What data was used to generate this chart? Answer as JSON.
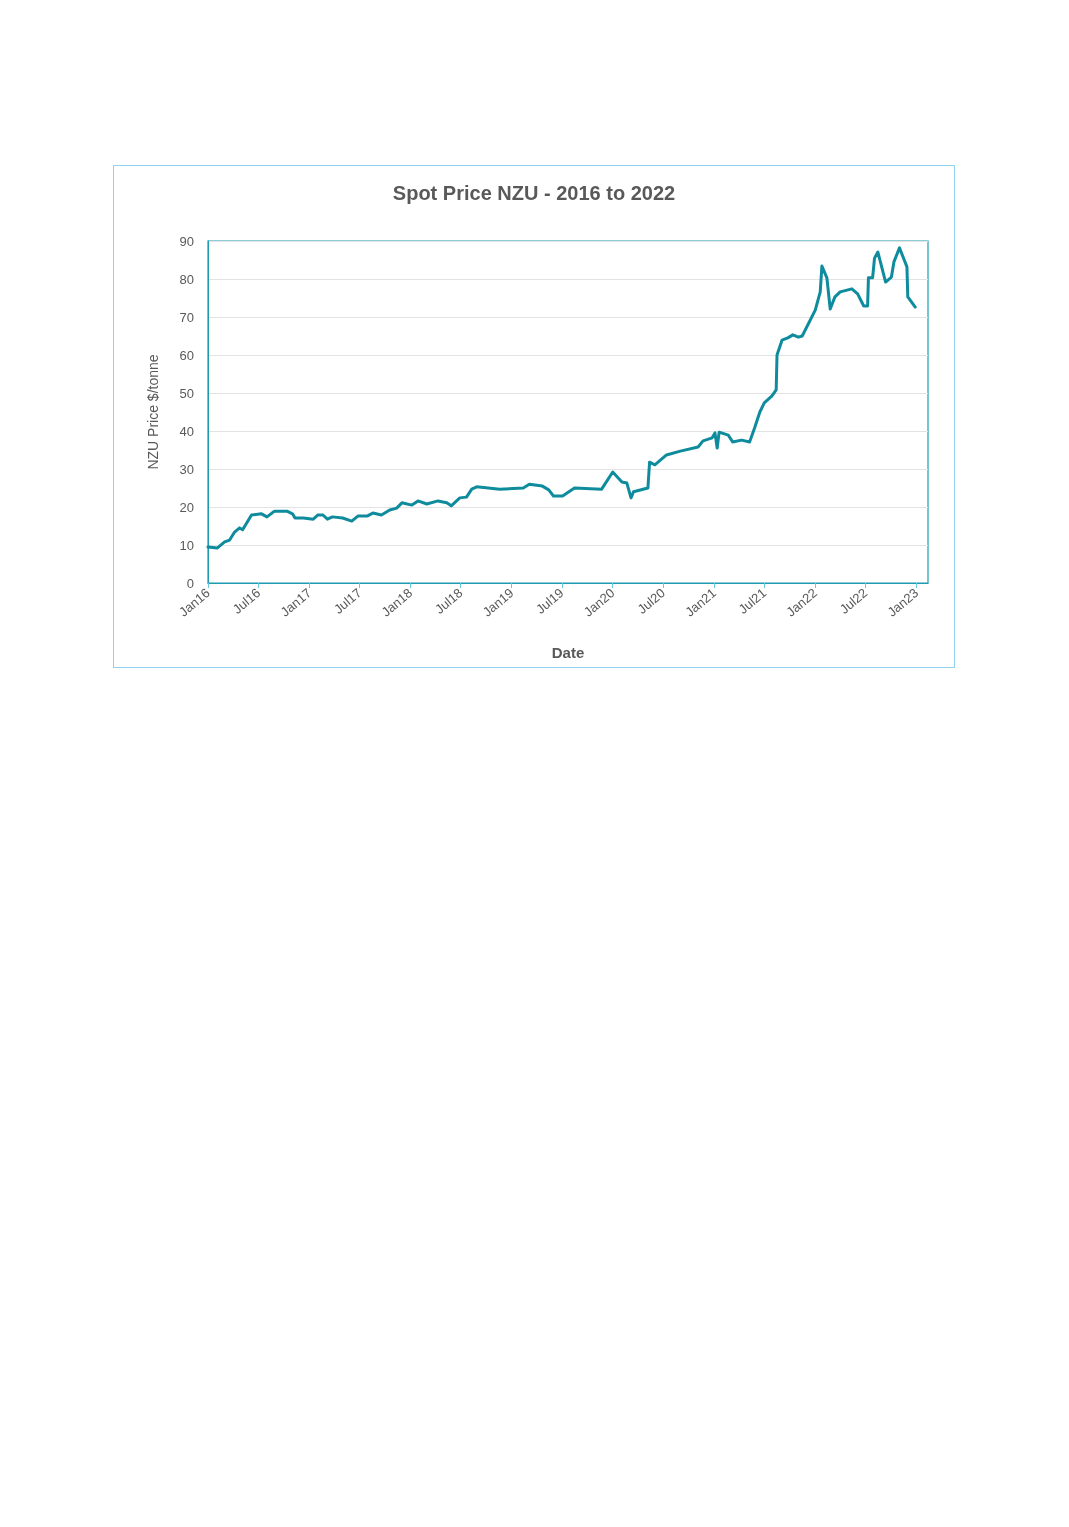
{
  "chart_data": {
    "type": "line",
    "title": "Spot Price NZU - 2016 to 2022",
    "xlabel": "Date",
    "ylabel": "NZU Price $/tonne",
    "x": [
      "2016-01-01",
      "2016-02-03",
      "2016-03-01",
      "2016-03-19",
      "2016-04-06",
      "2016-04-24",
      "2016-05-05",
      "2016-06-06",
      "2016-07-12",
      "2016-08-01",
      "2016-08-28",
      "2016-10-12",
      "2016-11-01",
      "2016-11-10",
      "2016-12-10",
      "2017-01-15",
      "2017-02-01",
      "2017-02-19",
      "2017-03-07",
      "2017-03-25",
      "2017-05-01",
      "2017-06-03",
      "2017-06-25",
      "2017-07-28",
      "2017-08-18",
      "2017-09-18",
      "2017-10-18",
      "2017-11-12",
      "2017-12-01",
      "2018-01-06",
      "2018-01-28",
      "2018-03-01",
      "2018-04-10",
      "2018-05-12",
      "2018-05-28",
      "2018-06-28",
      "2018-07-22",
      "2018-08-10",
      "2018-08-28",
      "2018-11-19",
      "2019-02-12",
      "2019-03-06",
      "2019-04-22",
      "2019-05-15",
      "2019-06-01",
      "2019-07-04",
      "2019-08-16",
      "2019-11-22",
      "2020-01-01",
      "2020-02-03",
      "2020-02-21",
      "2020-03-07",
      "2020-03-16",
      "2020-05-07",
      "2020-05-13",
      "2020-06-01",
      "2020-07-13",
      "2020-09-01",
      "2020-11-04",
      "2020-11-22",
      "2020-12-25",
      "2021-01-04",
      "2021-01-12",
      "2021-01-19",
      "2021-02-21",
      "2021-03-09",
      "2021-04-10",
      "2021-05-09",
      "2021-05-27",
      "2021-06-15",
      "2021-07-01",
      "2021-07-28",
      "2021-08-13",
      "2021-08-16",
      "2021-09-03",
      "2021-09-24",
      "2021-10-12",
      "2021-11-01",
      "2021-11-15",
      "2022-01-01",
      "2022-01-19",
      "2022-01-25",
      "2022-02-12",
      "2022-02-24",
      "2022-03-13",
      "2022-04-01",
      "2022-05-13",
      "2022-06-03",
      "2022-06-25",
      "2022-07-09",
      "2022-07-12",
      "2022-07-27",
      "2022-08-03",
      "2022-08-15",
      "2022-09-12",
      "2022-10-03",
      "2022-10-12",
      "2022-11-01",
      "2022-11-28",
      "2022-12-01",
      "2022-12-28"
    ],
    "series": [
      {
        "color": "#0e8c9e",
        "values": [
          9.5,
          9.2,
          10.8,
          11.3,
          13.4,
          14.5,
          14,
          17.9,
          18.2,
          17.4,
          18.9,
          18.9,
          18.2,
          17.1,
          17.1,
          16.8,
          17.9,
          17.9,
          16.8,
          17.4,
          17.1,
          16.3,
          17.6,
          17.6,
          18.4,
          17.9,
          19.2,
          19.7,
          21.1,
          20.5,
          21.6,
          20.8,
          21.6,
          21.1,
          20.3,
          22.4,
          22.6,
          24.7,
          25.3,
          24.7,
          25,
          26,
          25.5,
          24.5,
          22.9,
          22.9,
          25,
          24.7,
          29.2,
          26.6,
          26.3,
          22.4,
          24,
          25,
          31.8,
          31.1,
          33.7,
          34.7,
          35.8,
          37.4,
          38.2,
          39.5,
          35.5,
          39.7,
          38.9,
          37.1,
          37.6,
          37.1,
          40.8,
          45,
          47.4,
          49.2,
          50.8,
          60,
          63.9,
          64.5,
          65.3,
          64.7,
          65,
          71.8,
          76.6,
          83.4,
          80.3,
          72.1,
          75.3,
          76.6,
          77.4,
          76.1,
          72.9,
          72.9,
          80.3,
          80.3,
          85.5,
          87.1,
          79.2,
          80.5,
          84.5,
          88.2,
          83.2,
          75.3,
          72.6
        ]
      }
    ],
    "xlim": [
      "2016-01-01",
      "2023-02-12"
    ],
    "xticks": [
      {
        "value": "2016-01-01",
        "label": "Jan16"
      },
      {
        "value": "2016-07-01",
        "label": "Jul16"
      },
      {
        "value": "2017-01-01",
        "label": "Jan17"
      },
      {
        "value": "2017-07-01",
        "label": "Jul17"
      },
      {
        "value": "2018-01-01",
        "label": "Jan18"
      },
      {
        "value": "2018-07-01",
        "label": "Jul18"
      },
      {
        "value": "2019-01-01",
        "label": "Jan19"
      },
      {
        "value": "2019-07-01",
        "label": "Jul19"
      },
      {
        "value": "2020-01-01",
        "label": "Jan20"
      },
      {
        "value": "2020-07-01",
        "label": "Jul20"
      },
      {
        "value": "2021-01-01",
        "label": "Jan21"
      },
      {
        "value": "2021-07-01",
        "label": "Jul21"
      },
      {
        "value": "2022-01-01",
        "label": "Jan22"
      },
      {
        "value": "2022-07-01",
        "label": "Jul22"
      },
      {
        "value": "2023-01-01",
        "label": "Jan23"
      }
    ],
    "ylim": [
      0,
      90
    ],
    "yticks": [
      0,
      10,
      20,
      30,
      40,
      50,
      60,
      70,
      80,
      90
    ],
    "grid": "y",
    "marker": "none",
    "line_style": "solid"
  }
}
